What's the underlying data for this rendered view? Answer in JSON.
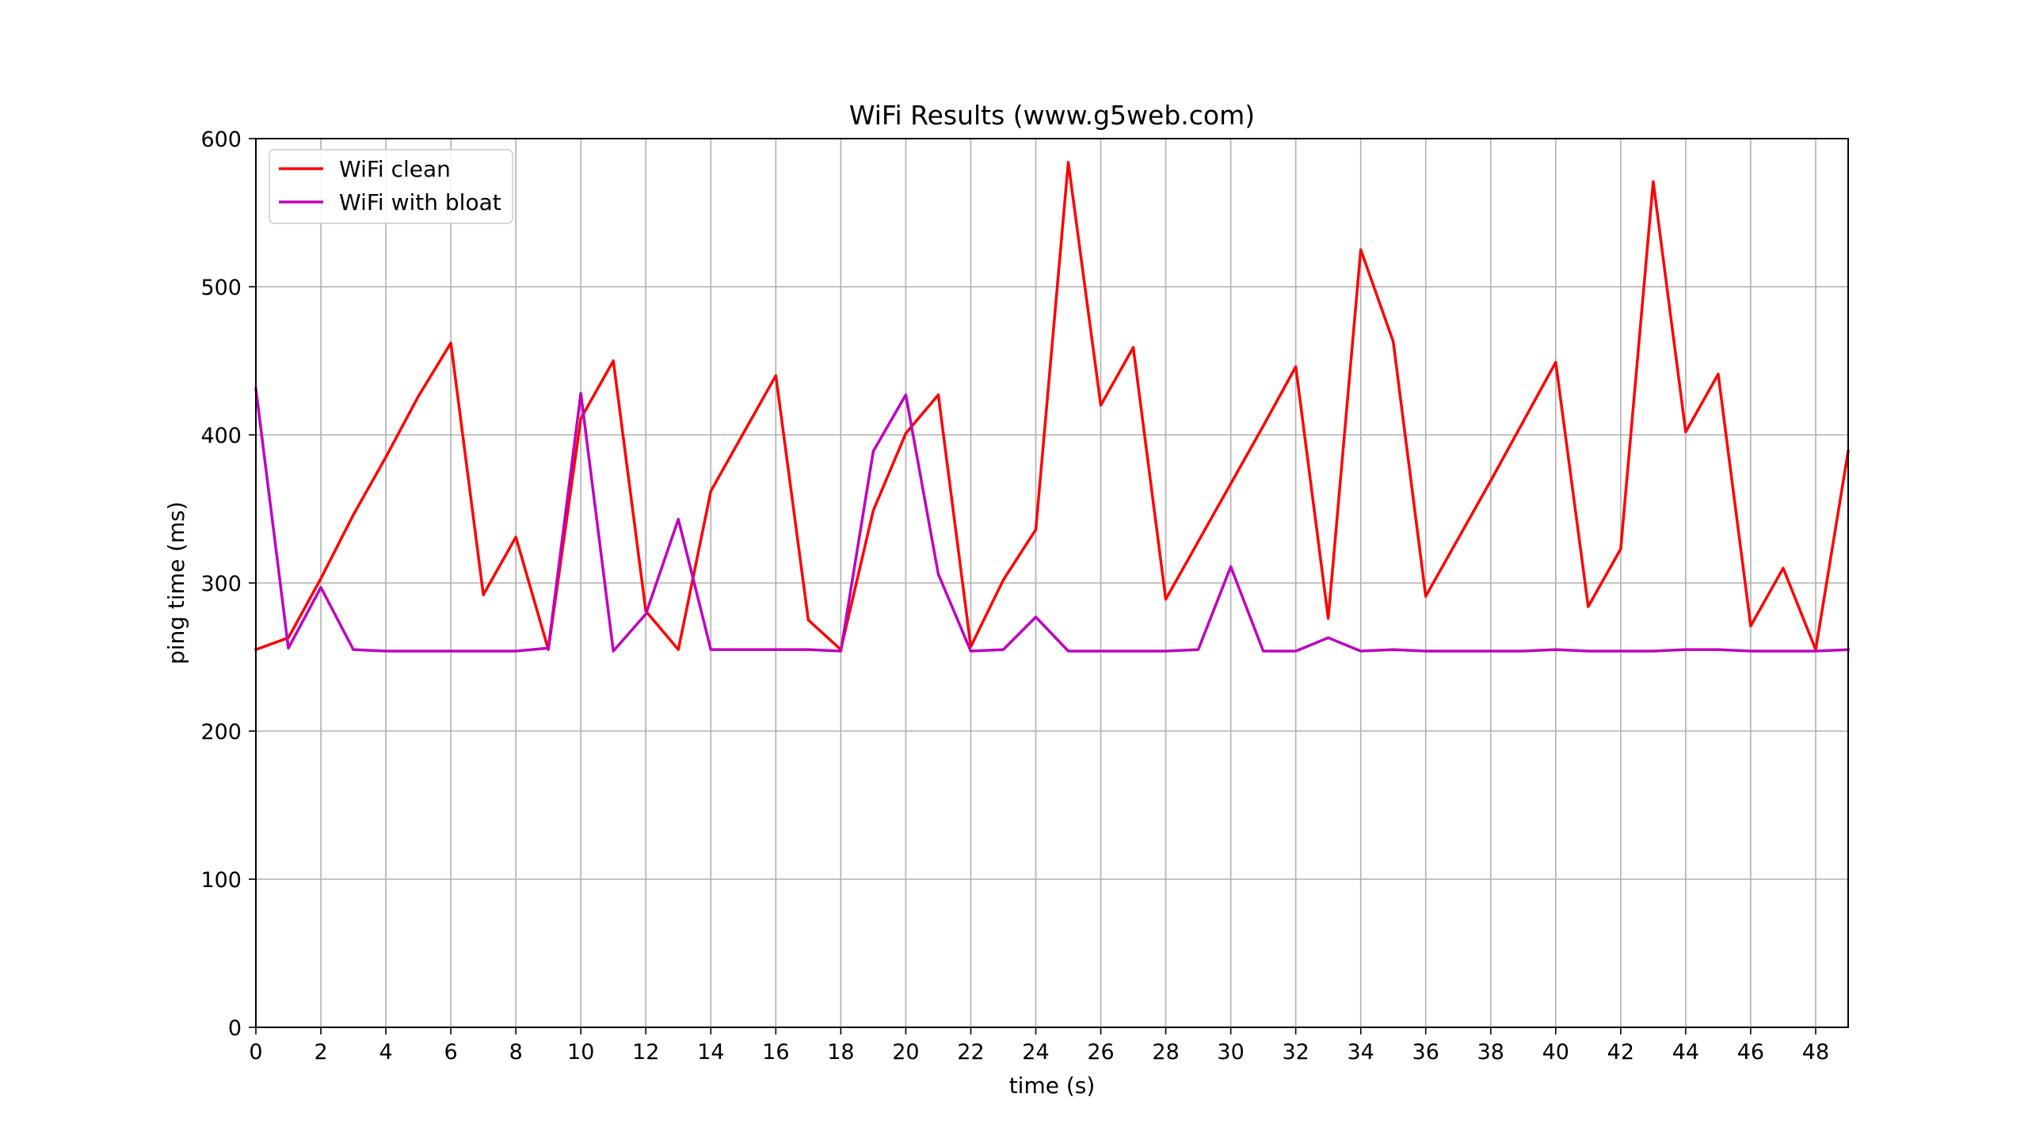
{
  "chart_data": {
    "type": "line",
    "title": "WiFi Results (www.g5web.com)",
    "xlabel": "time (s)",
    "ylabel": "ping time (ms)",
    "xlim": [
      0,
      49
    ],
    "ylim": [
      0,
      600
    ],
    "xticks": [
      0,
      2,
      4,
      6,
      8,
      10,
      12,
      14,
      16,
      18,
      20,
      22,
      24,
      26,
      28,
      30,
      32,
      34,
      36,
      38,
      40,
      42,
      44,
      46,
      48
    ],
    "yticks": [
      0,
      100,
      200,
      300,
      400,
      500,
      600
    ],
    "grid": true,
    "legend_position": "top-left",
    "x": [
      0,
      1,
      2,
      3,
      4,
      5,
      6,
      7,
      8,
      9,
      10,
      11,
      12,
      13,
      14,
      15,
      16,
      17,
      18,
      19,
      20,
      21,
      22,
      23,
      24,
      25,
      26,
      27,
      28,
      29,
      30,
      31,
      32,
      33,
      34,
      35,
      36,
      37,
      38,
      39,
      40,
      41,
      42,
      43,
      44,
      45,
      46,
      47,
      48,
      49
    ],
    "series": [
      {
        "name": "WiFi clean",
        "color": "#ff0000",
        "values": [
          255,
          263,
          303,
          346,
          385,
          426,
          462,
          292,
          331,
          255,
          411,
          450,
          281,
          255,
          362,
          401,
          440,
          275,
          255,
          349,
          401,
          427,
          257,
          302,
          336,
          584,
          420,
          459,
          289,
          328,
          367,
          406,
          446,
          276,
          525,
          463,
          291,
          330,
          369,
          409,
          449,
          284,
          323,
          571,
          402,
          441,
          271,
          310,
          255,
          389
        ]
      },
      {
        "name": "WiFi with bloat",
        "color": "#bf00bf",
        "values": [
          431,
          256,
          297,
          255,
          254,
          254,
          254,
          254,
          254,
          256,
          428,
          254,
          279,
          343,
          255,
          255,
          255,
          255,
          254,
          389,
          427,
          306,
          254,
          255,
          277,
          254,
          254,
          254,
          254,
          255,
          311,
          254,
          254,
          263,
          254,
          255,
          254,
          254,
          254,
          254,
          255,
          254,
          254,
          254,
          255,
          255,
          254,
          254,
          254,
          255
        ]
      }
    ]
  }
}
